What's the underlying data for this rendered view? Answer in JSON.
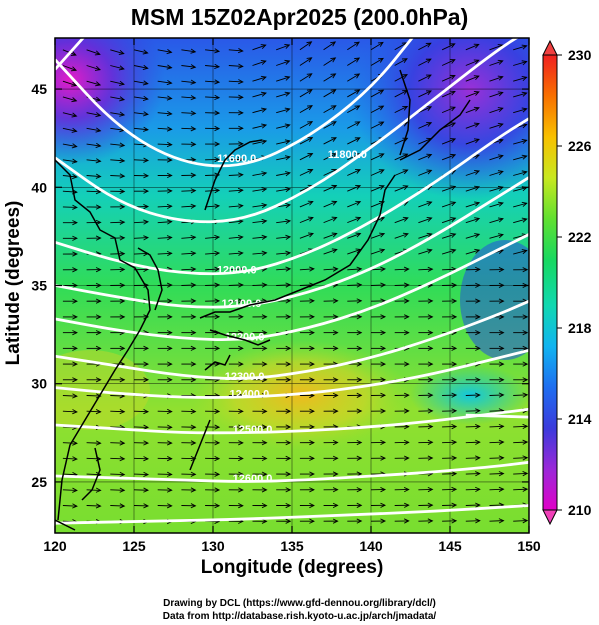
{
  "title": "MSM 15Z02Apr2025 (200.0hPa)",
  "xlabel": "Longitude (degrees)",
  "ylabel": "Latitude  (degrees)",
  "credits": [
    "Drawing by DCL (https://www.gfd-dennou.org/library/dcl/)",
    "Data from http://database.rish.kyoto-u.ac.jp/arch/jmadata/"
  ],
  "chart_data": {
    "type": "heatmap",
    "variable": "temperature shading with geopotential height contours and wind arrows",
    "x_range": [
      120,
      150
    ],
    "y_range": [
      22.4,
      47.6
    ],
    "x_ticks": [
      120,
      125,
      130,
      135,
      140,
      145,
      150
    ],
    "y_ticks": [
      25,
      30,
      35,
      40,
      45
    ],
    "colorbar": {
      "range": [
        210,
        230
      ],
      "ticks": [
        210,
        214,
        218,
        222,
        226,
        230
      ],
      "colors": [
        "#e000c8",
        "#9a28d8",
        "#3b3bdc",
        "#1e6ef0",
        "#10b4f0",
        "#10d8b0",
        "#18d860",
        "#60e030",
        "#c8e820",
        "#f8c000",
        "#f87000",
        "#f02020"
      ]
    },
    "contour_labels": [
      {
        "text": "11600.0",
        "lon": 131.5,
        "lat": 41.3
      },
      {
        "text": "11800.0",
        "lon": 138.5,
        "lat": 41.5
      },
      {
        "text": "12000.0",
        "lon": 131.5,
        "lat": 35.6
      },
      {
        "text": "12100.0",
        "lon": 131.8,
        "lat": 33.9
      },
      {
        "text": "12200.0",
        "lon": 132.0,
        "lat": 32.2
      },
      {
        "text": "12300.0",
        "lon": 132.0,
        "lat": 30.2
      },
      {
        "text": "12400.0",
        "lon": 132.3,
        "lat": 29.3
      },
      {
        "text": "12500.0",
        "lon": 132.5,
        "lat": 27.5
      },
      {
        "text": "12600.0",
        "lon": 132.5,
        "lat": 25.0
      }
    ],
    "wind_direction": "westerly jet curving northeast over Japan"
  }
}
